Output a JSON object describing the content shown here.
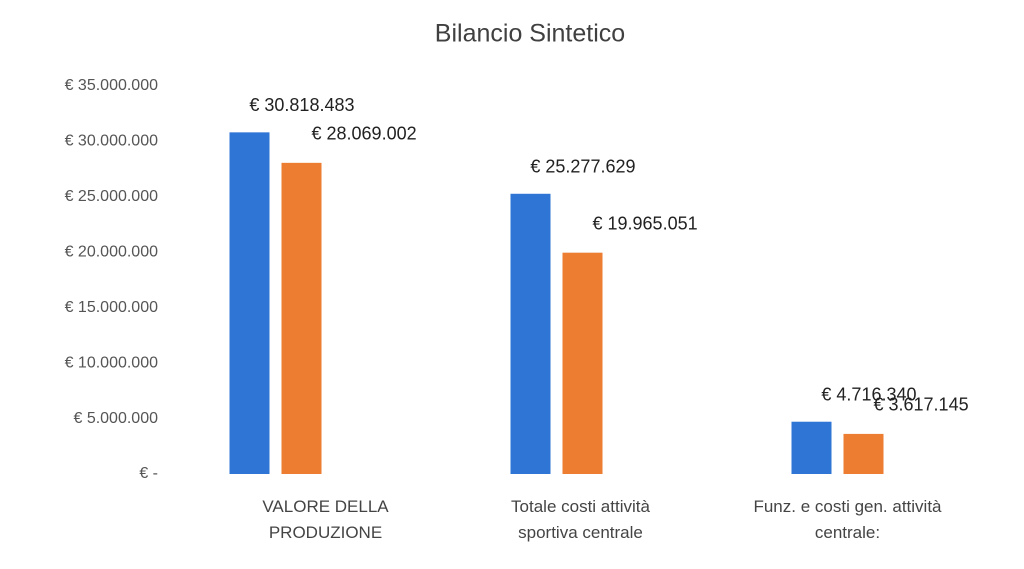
{
  "chart_data": {
    "type": "bar",
    "title": "Bilancio Sintetico",
    "categories": [
      "VALORE DELLA PRODUZIONE",
      "Totale costi attività sportiva centrale",
      "Funz. e costi gen. attività centrale:"
    ],
    "series": [
      {
        "color": "#2e75d6",
        "values": [
          30818483,
          25277629,
          4716340
        ],
        "value_labels": [
          "€ 30.818.483",
          "€ 25.277.629",
          "€ 4.716.340"
        ]
      },
      {
        "color": "#ed7d31",
        "values": [
          28069002,
          19965051,
          3617145
        ],
        "value_labels": [
          "€ 28.069.002",
          "€ 19.965.051",
          "€ 3.617.145"
        ]
      }
    ],
    "ylim": [
      0,
      35000000
    ],
    "yticks": [
      {
        "value": 0,
        "label": "€ -"
      },
      {
        "value": 5000000,
        "label": "€ 5.000.000"
      },
      {
        "value": 10000000,
        "label": "€ 10.000.000"
      },
      {
        "value": 15000000,
        "label": "€ 15.000.000"
      },
      {
        "value": 20000000,
        "label": "€ 20.000.000"
      },
      {
        "value": 25000000,
        "label": "€ 25.000.000"
      },
      {
        "value": 30000000,
        "label": "€ 30.000.000"
      },
      {
        "value": 35000000,
        "label": "€ 35.000.000"
      }
    ],
    "grid": false
  }
}
